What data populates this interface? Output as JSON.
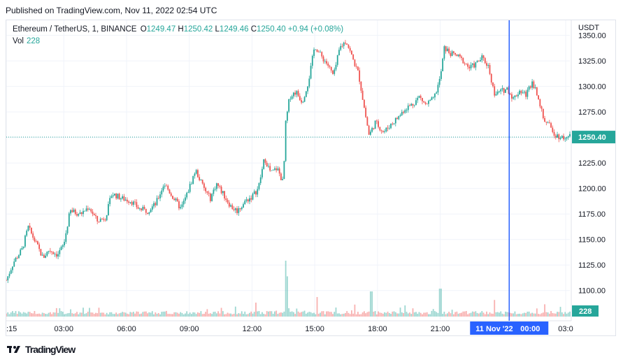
{
  "header": {
    "published": "Published on TradingView.com, Nov 11, 2022 02:54 UTC"
  },
  "legend": {
    "symbol": "Ethereum / TetherUS, 1, BINANCE",
    "open_key": "O",
    "open": "1249.47",
    "high_key": "H",
    "high": "1250.42",
    "low_key": "L",
    "low": "1249.46",
    "close_key": "C",
    "close": "1250.40",
    "change": "+0.94 (+0.08%)",
    "vol_label": "Vol",
    "vol_value": "228"
  },
  "footer": {
    "brand": "TradingView",
    "logo": "tradingview-logo-icon"
  },
  "colors": {
    "up": "#26a69a",
    "down": "#ef5350",
    "crosshair": "#2962ff",
    "grid": "#f0f3fa"
  },
  "chart_data": {
    "type": "candlestick",
    "currency": "USDT",
    "y_ticks": [
      1100,
      1125,
      1150,
      1175,
      1200,
      1225,
      1250,
      1275,
      1300,
      1325,
      1350
    ],
    "ylim": [
      1095,
      1358
    ],
    "x_ticks": [
      {
        "label": ":15",
        "t": 0.25
      },
      {
        "label": "03:00",
        "t": 3
      },
      {
        "label": "06:00",
        "t": 6
      },
      {
        "label": "09:00",
        "t": 9
      },
      {
        "label": "12:00",
        "t": 12
      },
      {
        "label": "15:00",
        "t": 15
      },
      {
        "label": "18:00",
        "t": 18
      },
      {
        "label": "21:00",
        "t": 21
      },
      {
        "label": "03:0",
        "t": 27
      }
    ],
    "xlim": [
      0.25,
      27.2
    ],
    "last_price": "1250.40",
    "last_volume": "228",
    "crosshair": {
      "t": 24.3,
      "date": "11 Nov '22",
      "time": "00:00"
    },
    "price_path": [
      [
        0.25,
        1110
      ],
      [
        0.6,
        1128
      ],
      [
        1.0,
        1140
      ],
      [
        1.3,
        1162
      ],
      [
        1.7,
        1145
      ],
      [
        2.0,
        1132
      ],
      [
        2.3,
        1140
      ],
      [
        2.7,
        1135
      ],
      [
        3.0,
        1145
      ],
      [
        3.3,
        1178
      ],
      [
        3.8,
        1175
      ],
      [
        4.2,
        1182
      ],
      [
        4.6,
        1168
      ],
      [
        5.0,
        1172
      ],
      [
        5.3,
        1195
      ],
      [
        5.8,
        1190
      ],
      [
        6.2,
        1188
      ],
      [
        6.6,
        1180
      ],
      [
        7.0,
        1178
      ],
      [
        7.4,
        1185
      ],
      [
        7.8,
        1205
      ],
      [
        8.2,
        1192
      ],
      [
        8.6,
        1180
      ],
      [
        8.9,
        1195
      ],
      [
        9.3,
        1218
      ],
      [
        9.7,
        1200
      ],
      [
        10.0,
        1190
      ],
      [
        10.3,
        1205
      ],
      [
        10.7,
        1192
      ],
      [
        11.0,
        1182
      ],
      [
        11.3,
        1178
      ],
      [
        11.7,
        1188
      ],
      [
        12.0,
        1192
      ],
      [
        12.3,
        1200
      ],
      [
        12.6,
        1230
      ],
      [
        12.9,
        1215
      ],
      [
        13.2,
        1220
      ],
      [
        13.5,
        1205
      ],
      [
        13.6,
        1262
      ],
      [
        13.8,
        1290
      ],
      [
        14.1,
        1295
      ],
      [
        14.4,
        1285
      ],
      [
        14.7,
        1305
      ],
      [
        15.0,
        1340
      ],
      [
        15.3,
        1330
      ],
      [
        15.6,
        1322
      ],
      [
        15.9,
        1310
      ],
      [
        16.2,
        1338
      ],
      [
        16.5,
        1345
      ],
      [
        16.8,
        1328
      ],
      [
        17.1,
        1312
      ],
      [
        17.4,
        1275
      ],
      [
        17.6,
        1252
      ],
      [
        17.9,
        1265
      ],
      [
        18.3,
        1255
      ],
      [
        18.6,
        1262
      ],
      [
        19.0,
        1270
      ],
      [
        19.3,
        1278
      ],
      [
        19.7,
        1283
      ],
      [
        20.0,
        1290
      ],
      [
        20.3,
        1282
      ],
      [
        20.7,
        1288
      ],
      [
        21.0,
        1308
      ],
      [
        21.2,
        1338
      ],
      [
        21.5,
        1332
      ],
      [
        21.8,
        1330
      ],
      [
        22.1,
        1325
      ],
      [
        22.4,
        1318
      ],
      [
        22.7,
        1322
      ],
      [
        23.0,
        1328
      ],
      [
        23.3,
        1320
      ],
      [
        23.6,
        1292
      ],
      [
        23.9,
        1295
      ],
      [
        24.2,
        1298
      ],
      [
        24.5,
        1288
      ],
      [
        24.8,
        1296
      ],
      [
        25.1,
        1292
      ],
      [
        25.4,
        1305
      ],
      [
        25.7,
        1290
      ],
      [
        25.9,
        1270
      ],
      [
        26.2,
        1262
      ],
      [
        26.5,
        1253
      ],
      [
        26.8,
        1250
      ],
      [
        27.2,
        1250.4
      ]
    ],
    "volume_spikes": [
      {
        "t": 13.6,
        "v": 1.0
      },
      {
        "t": 13.7,
        "v": 0.72
      },
      {
        "t": 12.2,
        "v": 0.25
      },
      {
        "t": 17.7,
        "v": 0.45
      },
      {
        "t": 21.0,
        "v": 0.5
      },
      {
        "t": 23.6,
        "v": 0.28
      },
      {
        "t": 26.0,
        "v": 0.22
      },
      {
        "t": 15.1,
        "v": 0.35
      },
      {
        "t": 19.3,
        "v": 0.2
      }
    ]
  }
}
